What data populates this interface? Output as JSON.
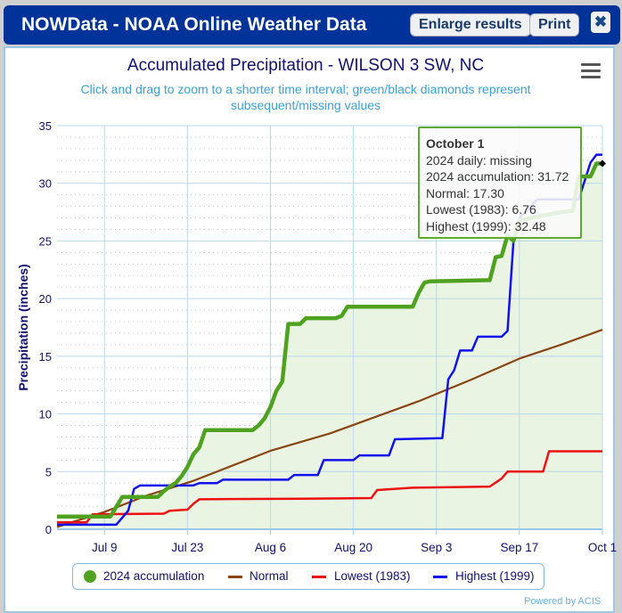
{
  "window": {
    "title": "NOWData - NOAA Online Weather Data",
    "enlarge_label": "Enlarge results",
    "print_label": "Print",
    "close_icon": "close-icon"
  },
  "menu_icon": "hamburger-menu-icon",
  "footer": {
    "credit": "Powered by ACIS"
  },
  "tooltip": {
    "date": "October 1",
    "lines": [
      "2024 daily: missing",
      "2024 accumulation: 31.72",
      "Normal: 17.30",
      "Lowest (1983): 6.76",
      "Highest (1999): 32.48"
    ]
  },
  "chart_data": {
    "type": "line",
    "title": "Accumulated Precipitation - WILSON 3 SW, NC",
    "subtitle": "Click and drag to zoom to a shorter time interval; green/black diamonds represent subsequent/missing values",
    "xlabel": "",
    "ylabel": "Precipitation (inches)",
    "year": 2024,
    "xlim": [
      "07-01",
      "10-01"
    ],
    "ylim": [
      0,
      35
    ],
    "yticks": [
      0,
      5,
      10,
      15,
      20,
      25,
      30,
      35
    ],
    "xticks": [
      {
        "date": "07-09",
        "label": "Jul 9"
      },
      {
        "date": "07-23",
        "label": "Jul 23"
      },
      {
        "date": "08-06",
        "label": "Aug 6"
      },
      {
        "date": "08-20",
        "label": "Aug 20"
      },
      {
        "date": "09-03",
        "label": "Sep 3"
      },
      {
        "date": "09-17",
        "label": "Sep 17"
      },
      {
        "date": "10-01",
        "label": "Oct 1"
      }
    ],
    "grid": true,
    "legend_position": "bottom",
    "series": [
      {
        "name": "2024 accumulation",
        "color": "#4ea21f",
        "area": true,
        "points": [
          [
            "07-01",
            1.1
          ],
          [
            "07-10",
            1.1
          ],
          [
            "07-12",
            2.8
          ],
          [
            "07-18",
            2.8
          ],
          [
            "07-19",
            3.3
          ],
          [
            "07-20",
            3.7
          ],
          [
            "07-21",
            4.0
          ],
          [
            "07-22",
            4.6
          ],
          [
            "07-23",
            5.4
          ],
          [
            "07-24",
            6.5
          ],
          [
            "07-25",
            7.1
          ],
          [
            "07-26",
            8.6
          ],
          [
            "08-03",
            8.6
          ],
          [
            "08-04",
            9.0
          ],
          [
            "08-05",
            9.6
          ],
          [
            "08-06",
            10.6
          ],
          [
            "08-07",
            12.0
          ],
          [
            "08-08",
            12.8
          ],
          [
            "08-09",
            17.8
          ],
          [
            "08-11",
            17.8
          ],
          [
            "08-12",
            18.3
          ],
          [
            "08-17",
            18.3
          ],
          [
            "08-18",
            18.5
          ],
          [
            "08-19",
            19.3
          ],
          [
            "08-30",
            19.3
          ],
          [
            "08-31",
            20.5
          ],
          [
            "09-01",
            21.4
          ],
          [
            "09-02",
            21.5
          ],
          [
            "09-12",
            21.6
          ],
          [
            "09-13",
            23.6
          ],
          [
            "09-14",
            23.7
          ],
          [
            "09-15",
            25.5
          ],
          [
            "09-16",
            25.0
          ],
          [
            "09-17",
            26.8
          ],
          [
            "09-24",
            27.5
          ],
          [
            "09-26",
            27.6
          ],
          [
            "09-27",
            30.6
          ],
          [
            "09-29",
            30.6
          ],
          [
            "09-30",
            31.72
          ],
          [
            "10-01",
            31.72
          ]
        ]
      },
      {
        "name": "Normal",
        "color": "#8b4513",
        "points": [
          [
            "07-01",
            0.2
          ],
          [
            "07-09",
            1.5
          ],
          [
            "07-16",
            2.9
          ],
          [
            "07-24",
            4.2
          ],
          [
            "08-06",
            6.8
          ],
          [
            "08-16",
            8.3
          ],
          [
            "08-31",
            11.1
          ],
          [
            "09-09",
            13.0
          ],
          [
            "09-17",
            14.8
          ],
          [
            "09-24",
            16.0
          ],
          [
            "10-01",
            17.3
          ]
        ]
      },
      {
        "name": "Lowest (1983)",
        "color": "#ee1111",
        "points": [
          [
            "07-01",
            0.6
          ],
          [
            "07-06",
            0.6
          ],
          [
            "07-07",
            1.3
          ],
          [
            "07-19",
            1.35
          ],
          [
            "07-20",
            1.6
          ],
          [
            "07-23",
            1.7
          ],
          [
            "07-24",
            2.2
          ],
          [
            "07-25",
            2.6
          ],
          [
            "08-11",
            2.65
          ],
          [
            "08-23",
            2.7
          ],
          [
            "08-24",
            3.4
          ],
          [
            "08-30",
            3.6
          ],
          [
            "09-12",
            3.7
          ],
          [
            "09-14",
            4.4
          ],
          [
            "09-15",
            5.0
          ],
          [
            "09-21",
            5.0
          ],
          [
            "09-22",
            6.76
          ],
          [
            "10-01",
            6.76
          ]
        ]
      },
      {
        "name": "Highest (1999)",
        "color": "#1111ee",
        "points": [
          [
            "07-01",
            0.4
          ],
          [
            "07-11",
            0.4
          ],
          [
            "07-13",
            1.6
          ],
          [
            "07-14",
            3.5
          ],
          [
            "07-15",
            3.8
          ],
          [
            "07-24",
            3.8
          ],
          [
            "07-25",
            4.0
          ],
          [
            "07-28",
            4.0
          ],
          [
            "07-29",
            4.3
          ],
          [
            "08-09",
            4.3
          ],
          [
            "08-10",
            4.7
          ],
          [
            "08-14",
            4.7
          ],
          [
            "08-15",
            6.0
          ],
          [
            "08-20",
            6.0
          ],
          [
            "08-21",
            6.4
          ],
          [
            "08-26",
            6.4
          ],
          [
            "08-27",
            7.8
          ],
          [
            "09-04",
            7.9
          ],
          [
            "09-05",
            13.0
          ],
          [
            "09-06",
            13.8
          ],
          [
            "09-07",
            15.5
          ],
          [
            "09-09",
            15.5
          ],
          [
            "09-10",
            16.7
          ],
          [
            "09-14",
            16.7
          ],
          [
            "09-15",
            17.2
          ],
          [
            "09-16",
            25.0
          ],
          [
            "09-17",
            27.0
          ],
          [
            "09-20",
            28.6
          ],
          [
            "09-27",
            28.6
          ],
          [
            "09-29",
            31.8
          ],
          [
            "09-30",
            32.48
          ],
          [
            "10-01",
            32.48
          ]
        ]
      }
    ],
    "markers": [
      {
        "date": "10-01",
        "value": 31.72,
        "shape": "diamond",
        "color": "#000000",
        "meaning": "missing"
      }
    ]
  }
}
